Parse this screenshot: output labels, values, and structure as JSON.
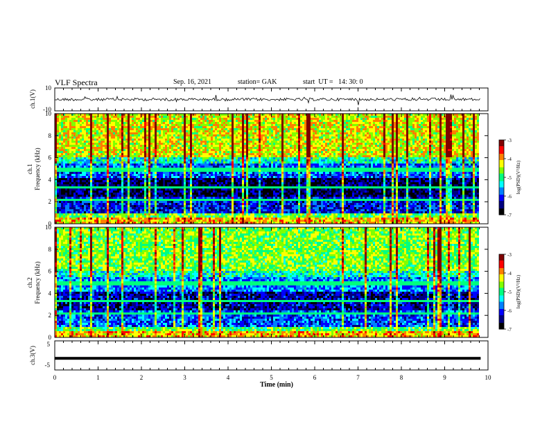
{
  "header": {
    "title": "VLF Spectra",
    "date": "Sep. 16, 2021",
    "station": "station= GAK",
    "start_ut": "start  UT =   14: 30: 0"
  },
  "chart_data": [
    {
      "type": "line",
      "name": "ch1-waveform",
      "ylabel": "ch.1(V)",
      "ylim": [
        -10,
        10
      ],
      "yticks": [
        "10",
        "-10"
      ],
      "xlim": [
        0,
        10
      ]
    },
    {
      "type": "heatmap",
      "name": "ch1-spectrogram",
      "ylabel": "ch.1\nFrequency (kHz)",
      "ylabel_lines": [
        "ch.1",
        "Frequency  (kHz)"
      ],
      "ylim": [
        0,
        10
      ],
      "yticks": [
        "0",
        "2",
        "4",
        "6",
        "8",
        "10"
      ],
      "xlim": [
        0,
        10
      ],
      "data_extent_min": 9.83,
      "colorbar": {
        "label": "log(PSD)(V²/Hz)",
        "range": [
          -7,
          -3
        ],
        "ticks": [
          "-3",
          "-4",
          "-5",
          "-6",
          "-7"
        ]
      }
    },
    {
      "type": "heatmap",
      "name": "ch2-spectrogram",
      "ylabel_lines": [
        "ch.2",
        "Frequency  (kHz)"
      ],
      "ylim": [
        0,
        10
      ],
      "yticks": [
        "0",
        "2",
        "4",
        "6",
        "8",
        "10"
      ],
      "xlim": [
        0,
        10
      ],
      "data_extent_min": 9.83,
      "colorbar": {
        "label": "log(PSD)(V²/Hz)",
        "range": [
          -7,
          -3
        ],
        "ticks": [
          "-3",
          "-4",
          "-5",
          "-6",
          "-7"
        ]
      }
    },
    {
      "type": "line",
      "name": "ch3-waveform",
      "ylabel": "ch.3(V)",
      "ylim": [
        -5,
        5
      ],
      "yticks": [
        "5",
        "-5"
      ],
      "level": -1,
      "xlim": [
        0,
        10
      ],
      "xlabel": "Time  (min)",
      "xticks": [
        "0",
        "1",
        "2",
        "3",
        "4",
        "5",
        "6",
        "7",
        "8",
        "9",
        "10"
      ]
    }
  ],
  "colors": {
    "colormap": [
      "#000000",
      "#00007f",
      "#0000ff",
      "#007fff",
      "#00ffff",
      "#00ff7f",
      "#7fff00",
      "#ffff00",
      "#ff7f00",
      "#ff0000",
      "#7f0000"
    ]
  }
}
